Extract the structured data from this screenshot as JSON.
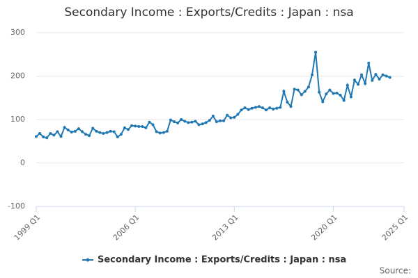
{
  "chart_data": {
    "type": "line",
    "title": "Secondary Income : Exports/Credits : Japan : nsa",
    "source": "Source:",
    "x": [
      1999,
      1999.25,
      1999.5,
      1999.75,
      2000,
      2000.25,
      2000.5,
      2000.75,
      2001,
      2001.25,
      2001.5,
      2001.75,
      2002,
      2002.25,
      2002.5,
      2002.75,
      2003,
      2003.25,
      2003.5,
      2003.75,
      2004,
      2004.25,
      2004.5,
      2004.75,
      2005,
      2005.25,
      2005.5,
      2005.75,
      2006,
      2006.25,
      2006.5,
      2006.75,
      2007,
      2007.25,
      2007.5,
      2007.75,
      2008,
      2008.25,
      2008.5,
      2008.75,
      2009,
      2009.25,
      2009.5,
      2009.75,
      2010,
      2010.25,
      2010.5,
      2010.75,
      2011,
      2011.25,
      2011.5,
      2011.75,
      2012,
      2012.25,
      2012.5,
      2012.75,
      2013,
      2013.25,
      2013.5,
      2013.75,
      2014,
      2014.25,
      2014.5,
      2014.75,
      2015,
      2015.25,
      2015.5,
      2015.75,
      2016,
      2016.25,
      2016.5,
      2016.75,
      2017,
      2017.25,
      2017.5,
      2017.75,
      2018,
      2018.25,
      2018.5,
      2018.75,
      2019,
      2019.25,
      2019.5,
      2019.75,
      2020,
      2020.25,
      2020.5,
      2020.75,
      2021,
      2021.25,
      2021.5,
      2021.75,
      2022,
      2022.25,
      2022.5,
      2022.75,
      2023,
      2023.25,
      2023.5,
      2023.75,
      2024
    ],
    "series": [
      {
        "name": "Secondary Income : Exports/Credits : Japan : nsa",
        "color": "#1f78b4",
        "values": [
          61,
          68,
          60,
          58,
          68,
          64,
          72,
          61,
          82,
          76,
          71,
          73,
          79,
          72,
          66,
          63,
          80,
          73,
          70,
          68,
          70,
          73,
          72,
          60,
          66,
          81,
          77,
          86,
          85,
          84,
          84,
          81,
          94,
          88,
          72,
          69,
          70,
          73,
          99,
          95,
          92,
          100,
          96,
          93,
          94,
          96,
          88,
          90,
          93,
          98,
          108,
          95,
          97,
          97,
          110,
          104,
          105,
          112,
          122,
          127,
          123,
          126,
          128,
          130,
          127,
          122,
          127,
          124,
          126,
          128,
          165,
          140,
          130,
          170,
          168,
          157,
          165,
          175,
          203,
          255,
          163,
          141,
          159,
          168,
          160,
          161,
          156,
          144,
          179,
          152,
          191,
          181,
          203,
          183,
          230,
          190,
          204,
          193,
          203,
          200,
          197
        ]
      }
    ],
    "xlim": [
      1999,
      2025
    ],
    "xticks": [
      {
        "value": 1999,
        "label": "1999 Q1"
      },
      {
        "value": 2006,
        "label": "2006 Q1"
      },
      {
        "value": 2013,
        "label": "2013 Q1"
      },
      {
        "value": 2020,
        "label": "2020 Q1"
      },
      {
        "value": 2025,
        "label": "2025 Q1"
      }
    ],
    "ylim": [
      -100,
      300
    ],
    "yticks": [
      -100,
      0,
      100,
      200,
      300
    ],
    "grid": true
  }
}
